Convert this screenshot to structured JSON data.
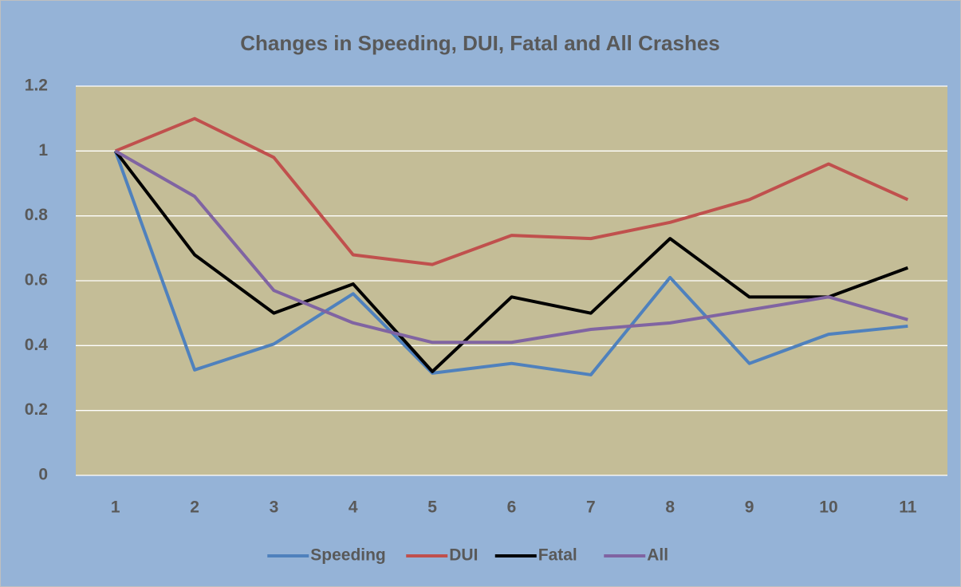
{
  "chart_data": {
    "type": "line",
    "title": "Changes in Speeding, DUI, Fatal and All Crashes",
    "categories": [
      1,
      2,
      3,
      4,
      5,
      6,
      7,
      8,
      9,
      10,
      11
    ],
    "series": [
      {
        "name": "Speeding",
        "color": "#4f81bd",
        "values": [
          1,
          0.325,
          0.405,
          0.56,
          0.315,
          0.345,
          0.31,
          0.61,
          0.345,
          0.435,
          0.46
        ]
      },
      {
        "name": "DUI",
        "color": "#c0504d",
        "values": [
          1,
          1.1,
          0.98,
          0.68,
          0.65,
          0.74,
          0.73,
          0.78,
          0.85,
          0.96,
          0.85
        ]
      },
      {
        "name": "Fatal",
        "color": "#000000",
        "values": [
          1,
          0.68,
          0.5,
          0.59,
          0.32,
          0.55,
          0.5,
          0.73,
          0.55,
          0.55,
          0.64
        ]
      },
      {
        "name": "All",
        "color": "#8064a2",
        "values": [
          1,
          0.86,
          0.57,
          0.47,
          0.41,
          0.41,
          0.45,
          0.47,
          0.51,
          0.55,
          0.48
        ]
      }
    ],
    "ylim": [
      0,
      1.2
    ],
    "yticks": [
      0,
      0.2,
      0.4,
      0.6,
      0.8,
      1,
      1.2
    ],
    "grid": true,
    "legend": "bottom"
  }
}
